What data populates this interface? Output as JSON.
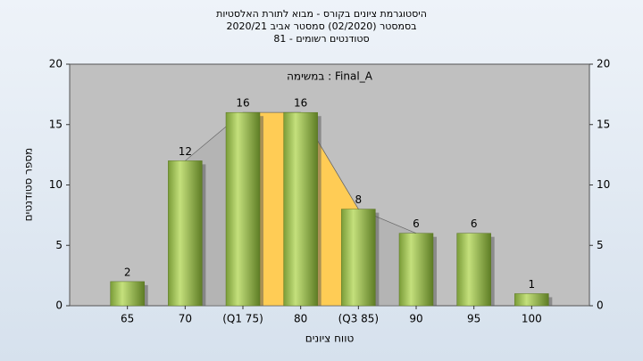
{
  "chart_data": {
    "type": "bar",
    "title": [
      "היסטוגרמת ציונים בקורס - מבוא לתורת האלסטיות",
      "בסמסטר  (02/2020)  סמסטר אביב 2020/21",
      "סטודנטים רשומים - 81"
    ],
    "annotation": "במשימה : Final_A",
    "x_label": "טווח ציונים",
    "y_label": "מספר סטודנטים",
    "categories": [
      "65",
      "70",
      "(Q1 75)",
      "80",
      "(Q3 85)",
      "90",
      "95",
      "100"
    ],
    "values": [
      2,
      12,
      16,
      16,
      8,
      6,
      6,
      1
    ],
    "color": "#8db04a",
    "ylim": [
      0,
      20
    ],
    "yticks": [
      0,
      5,
      10,
      15,
      20
    ],
    "y2lim": [
      0,
      20
    ],
    "y2ticks": [
      0,
      5,
      10,
      15,
      20
    ]
  }
}
